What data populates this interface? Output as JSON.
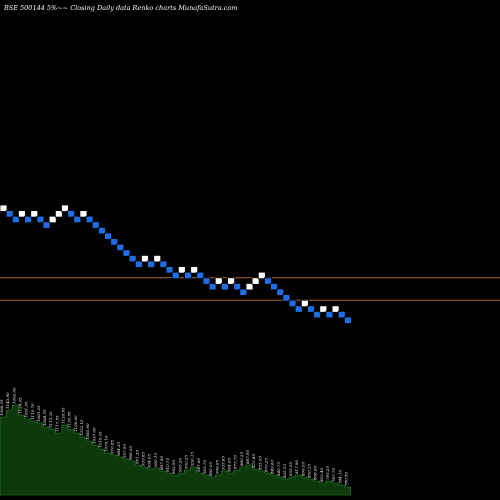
{
  "header": {
    "title": "BSE 500144  5%~~ Closing Daily data  Renko  charts MunafaSutra.com"
  },
  "colors": {
    "background": "#000000",
    "up_brick": "#ffffff",
    "down_brick": "#1e6fe6",
    "brick_border": "#000000",
    "line_upper": "#b8632a",
    "line_lower": "#b8632a",
    "volume_fill": "#0c3a0c",
    "volume_stroke": "#2f8a2f"
  },
  "chart_data": {
    "type": "renko",
    "bricks": [
      {
        "dir": "up",
        "level": 0
      },
      {
        "dir": "down",
        "level": -1
      },
      {
        "dir": "down",
        "level": -2
      },
      {
        "dir": "up",
        "level": -1
      },
      {
        "dir": "down",
        "level": -2
      },
      {
        "dir": "up",
        "level": -1
      },
      {
        "dir": "down",
        "level": -2
      },
      {
        "dir": "down",
        "level": -3
      },
      {
        "dir": "up",
        "level": -2
      },
      {
        "dir": "up",
        "level": -1
      },
      {
        "dir": "up",
        "level": 0
      },
      {
        "dir": "down",
        "level": -1
      },
      {
        "dir": "down",
        "level": -2
      },
      {
        "dir": "up",
        "level": -1
      },
      {
        "dir": "down",
        "level": -2
      },
      {
        "dir": "down",
        "level": -3
      },
      {
        "dir": "down",
        "level": -4
      },
      {
        "dir": "down",
        "level": -5
      },
      {
        "dir": "down",
        "level": -6
      },
      {
        "dir": "down",
        "level": -7
      },
      {
        "dir": "down",
        "level": -8
      },
      {
        "dir": "down",
        "level": -9
      },
      {
        "dir": "down",
        "level": -10
      },
      {
        "dir": "up",
        "level": -9
      },
      {
        "dir": "down",
        "level": -10
      },
      {
        "dir": "up",
        "level": -9
      },
      {
        "dir": "down",
        "level": -10
      },
      {
        "dir": "down",
        "level": -11
      },
      {
        "dir": "down",
        "level": -12
      },
      {
        "dir": "up",
        "level": -11
      },
      {
        "dir": "down",
        "level": -12
      },
      {
        "dir": "up",
        "level": -11
      },
      {
        "dir": "down",
        "level": -12
      },
      {
        "dir": "down",
        "level": -13
      },
      {
        "dir": "down",
        "level": -14
      },
      {
        "dir": "up",
        "level": -13
      },
      {
        "dir": "down",
        "level": -14
      },
      {
        "dir": "up",
        "level": -13
      },
      {
        "dir": "down",
        "level": -14
      },
      {
        "dir": "down",
        "level": -15
      },
      {
        "dir": "up",
        "level": -14
      },
      {
        "dir": "up",
        "level": -13
      },
      {
        "dir": "up",
        "level": -12
      },
      {
        "dir": "down",
        "level": -13
      },
      {
        "dir": "down",
        "level": -14
      },
      {
        "dir": "down",
        "level": -15
      },
      {
        "dir": "down",
        "level": -16
      },
      {
        "dir": "down",
        "level": -17
      },
      {
        "dir": "down",
        "level": -18
      },
      {
        "dir": "up",
        "level": -17
      },
      {
        "dir": "down",
        "level": -18
      },
      {
        "dir": "down",
        "level": -19
      },
      {
        "dir": "up",
        "level": -18
      },
      {
        "dir": "down",
        "level": -19
      },
      {
        "dir": "up",
        "level": -18
      },
      {
        "dir": "down",
        "level": -19
      },
      {
        "dir": "down",
        "level": -20
      }
    ],
    "horizontal_lines": [
      -12.5,
      -16.5
    ],
    "volume_values": [
      78,
      85,
      90,
      80,
      76,
      74,
      72,
      68,
      66,
      62,
      70,
      66,
      62,
      58,
      54,
      50,
      46,
      42,
      40,
      38,
      36,
      34,
      30,
      28,
      26,
      27,
      24,
      22,
      20,
      22,
      25,
      28,
      22,
      20,
      18,
      20,
      24,
      22,
      25,
      28,
      30,
      26,
      24,
      22,
      20,
      18,
      16,
      18,
      20,
      18,
      16,
      14,
      12,
      14,
      12,
      10,
      8
    ],
    "volume_labels": [
      "1066.55",
      "1143.90",
      "1092.00",
      "1124.05",
      "1051.05",
      "1110.70",
      "1065.25",
      "1084.55",
      "1115.20",
      "1117.55",
      "1120.95",
      "1130.95",
      "1106.00",
      "1052.10",
      "1080.60",
      "1037.00",
      "1010.05",
      "1079.10",
      "970.85",
      "984.35",
      "957.95",
      "966.05",
      "951.30",
      "939.65",
      "934.05",
      "900.15",
      "887.90",
      "910.75",
      "902.95",
      "905.20",
      "930.25",
      "936.15",
      "947.60",
      "903.70",
      "882.05",
      "906.05",
      "935.65",
      "904.05",
      "875.70",
      "880.25",
      "887.95",
      "872.85",
      "855.05",
      "870.25",
      "849.60",
      "840.75",
      "835.15",
      "855.05",
      "817.90",
      "806.05",
      "800.25",
      "808.90",
      "803.40",
      "795.25",
      "787.70",
      "784.10",
      "780.50"
    ]
  }
}
